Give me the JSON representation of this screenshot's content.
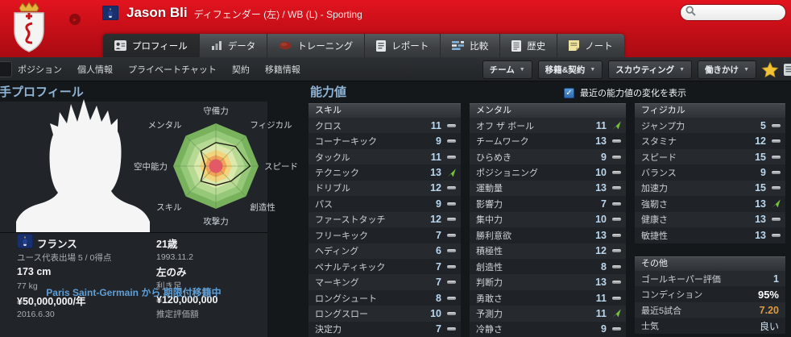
{
  "colors": {
    "header_red": "#c90f18",
    "value_blue": "#b9d7ee",
    "trend_green": "#76c23c",
    "title_blue": "#8fb4d6",
    "loan_blue": "#5f9fd8",
    "condition_orange": "#e09a3e"
  },
  "header": {
    "player_name": "Jason Bli",
    "player_desc": "ディフェンダー (左) / WB (L) - Sporting",
    "search": {
      "value": "",
      "placeholder": ""
    },
    "tabs": [
      {
        "label": "プロフィール",
        "icon": "profile-icon",
        "selected": true
      },
      {
        "label": "データ",
        "icon": "data-icon",
        "selected": false
      },
      {
        "label": "トレーニング",
        "icon": "training-icon",
        "selected": false
      },
      {
        "label": "レポート",
        "icon": "report-icon",
        "selected": false
      },
      {
        "label": "比較",
        "icon": "compare-icon",
        "selected": false
      },
      {
        "label": "歴史",
        "icon": "history-icon",
        "selected": false
      },
      {
        "label": "ノート",
        "icon": "note-icon",
        "selected": false
      }
    ]
  },
  "toolbar": {
    "items": [
      "ポジション",
      "個人情報",
      "プライベートチャット",
      "契約",
      "移籍情報"
    ],
    "dropdowns": [
      "チーム",
      "移籍&契約",
      "スカウティング",
      "働きかけ"
    ]
  },
  "profile": {
    "title": "手プロフィール",
    "radar": {
      "labels": [
        "守備力",
        "フィジカル",
        "スピード",
        "創造性",
        "攻撃力",
        "スキル",
        "空中能力",
        "メンタル"
      ],
      "values": [
        11,
        13,
        16,
        10,
        9,
        10,
        5,
        10
      ],
      "max": 20
    },
    "info": [
      {
        "left": {
          "text": "フランス",
          "bold": true,
          "flag": true
        },
        "right": {
          "text": "21歳",
          "bold": true
        }
      },
      {
        "left": {
          "text": "ユース代表出場 5 / 0得点"
        },
        "right": {
          "text": "1993.11.2"
        }
      },
      {
        "left": {
          "text": "173 cm",
          "bold": true
        },
        "right": {
          "text": "左のみ",
          "bold": true
        }
      },
      {
        "left": {
          "text": "77 kg"
        },
        "right": {
          "text": "利き足"
        }
      },
      {
        "left": {
          "text": "¥50,000,000/年",
          "bold": true
        },
        "right": {
          "text": "¥120,000,000",
          "bold": true
        }
      },
      {
        "left": {
          "text": "2016.6.30"
        },
        "right": {
          "text": "推定評価額"
        }
      }
    ],
    "loan_note": "Paris Saint-Germain から 期限付移籍中"
  },
  "attributes": {
    "title": "能力値",
    "show_changes_label": "最近の能力値の変化を表示",
    "show_changes_checked": true,
    "groups": [
      {
        "name": "スキル",
        "items": [
          {
            "label": "クロス",
            "value": 11,
            "trend": "flat"
          },
          {
            "label": "コーナーキック",
            "value": 9,
            "trend": "flat"
          },
          {
            "label": "タックル",
            "value": 11,
            "trend": "flat"
          },
          {
            "label": "テクニック",
            "value": 13,
            "trend": "up"
          },
          {
            "label": "ドリブル",
            "value": 12,
            "trend": "flat"
          },
          {
            "label": "パス",
            "value": 9,
            "trend": "flat"
          },
          {
            "label": "ファーストタッチ",
            "value": 12,
            "trend": "flat"
          },
          {
            "label": "フリーキック",
            "value": 7,
            "trend": "flat"
          },
          {
            "label": "ヘディング",
            "value": 6,
            "trend": "flat"
          },
          {
            "label": "ペナルティキック",
            "value": 7,
            "trend": "flat"
          },
          {
            "label": "マーキング",
            "value": 7,
            "trend": "flat"
          },
          {
            "label": "ロングシュート",
            "value": 8,
            "trend": "flat"
          },
          {
            "label": "ロングスロー",
            "value": 10,
            "trend": "flat"
          },
          {
            "label": "決定力",
            "value": 7,
            "trend": "flat"
          }
        ]
      },
      {
        "name": "メンタル",
        "items": [
          {
            "label": "オフ ザ ボール",
            "value": 11,
            "trend": "up"
          },
          {
            "label": "チームワーク",
            "value": 13,
            "trend": "flat"
          },
          {
            "label": "ひらめき",
            "value": 9,
            "trend": "flat"
          },
          {
            "label": "ポジショニング",
            "value": 10,
            "trend": "flat"
          },
          {
            "label": "運動量",
            "value": 13,
            "trend": "flat"
          },
          {
            "label": "影響力",
            "value": 7,
            "trend": "flat"
          },
          {
            "label": "集中力",
            "value": 10,
            "trend": "flat"
          },
          {
            "label": "勝利意欲",
            "value": 13,
            "trend": "flat"
          },
          {
            "label": "積極性",
            "value": 12,
            "trend": "flat"
          },
          {
            "label": "創造性",
            "value": 8,
            "trend": "flat"
          },
          {
            "label": "判断力",
            "value": 13,
            "trend": "flat"
          },
          {
            "label": "勇敢さ",
            "value": 11,
            "trend": "flat"
          },
          {
            "label": "予測力",
            "value": 11,
            "trend": "up"
          },
          {
            "label": "冷静さ",
            "value": 9,
            "trend": "flat"
          }
        ]
      },
      {
        "name": "フィジカル",
        "items": [
          {
            "label": "ジャンプ力",
            "value": 5,
            "trend": "flat"
          },
          {
            "label": "スタミナ",
            "value": 12,
            "trend": "flat"
          },
          {
            "label": "スピード",
            "value": 15,
            "trend": "flat"
          },
          {
            "label": "バランス",
            "value": 9,
            "trend": "flat"
          },
          {
            "label": "加速力",
            "value": 15,
            "trend": "flat"
          },
          {
            "label": "強靭さ",
            "value": 13,
            "trend": "up"
          },
          {
            "label": "健康さ",
            "value": 13,
            "trend": "flat"
          },
          {
            "label": "敏捷性",
            "value": 13,
            "trend": "flat"
          }
        ]
      },
      {
        "name": "その他",
        "items": [
          {
            "label": "ゴールキーパー評価",
            "value": "1",
            "style": "blue"
          },
          {
            "label": "コンディション",
            "value": "95%",
            "style": "white"
          },
          {
            "label": "最近5試合",
            "value": "7.20",
            "style": "orange"
          },
          {
            "label": "士気",
            "value": "良い",
            "style": "pale"
          }
        ]
      }
    ]
  }
}
